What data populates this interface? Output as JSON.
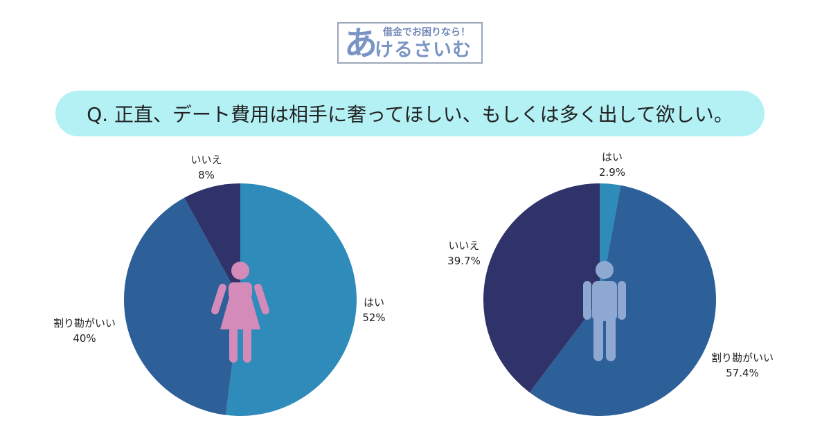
{
  "logo": {
    "big_char": "あ",
    "tagline": "借金でお困りなら！",
    "name": "けるさいむ"
  },
  "question": "Q. 正直、デート費用は相手に奢ってほしい、もしくは多く出して欲しい。",
  "colors": {
    "hai": "#2e8bba",
    "warikan": "#2d5f98",
    "iie": "#2f3369",
    "female_icon": "#d48bba",
    "male_icon": "#8fa8d2",
    "question_bg": "#b4f1f5"
  },
  "chart_data": [
    {
      "type": "pie",
      "icon": "female-icon",
      "slices": [
        {
          "label": "はい",
          "value": 52,
          "display": "52%",
          "color": "#2e8bba"
        },
        {
          "label": "割り勘がいい",
          "value": 40,
          "display": "40%",
          "color": "#2d5f98"
        },
        {
          "label": "いいえ",
          "value": 8,
          "display": "8%",
          "color": "#2f3369"
        }
      ]
    },
    {
      "type": "pie",
      "icon": "male-icon",
      "slices": [
        {
          "label": "はい",
          "value": 2.9,
          "display": "2.9%",
          "color": "#2e8bba"
        },
        {
          "label": "割り勘がいい",
          "value": 57.4,
          "display": "57.4%",
          "color": "#2d5f98"
        },
        {
          "label": "いいえ",
          "value": 39.7,
          "display": "39.7%",
          "color": "#2f3369"
        }
      ]
    }
  ]
}
